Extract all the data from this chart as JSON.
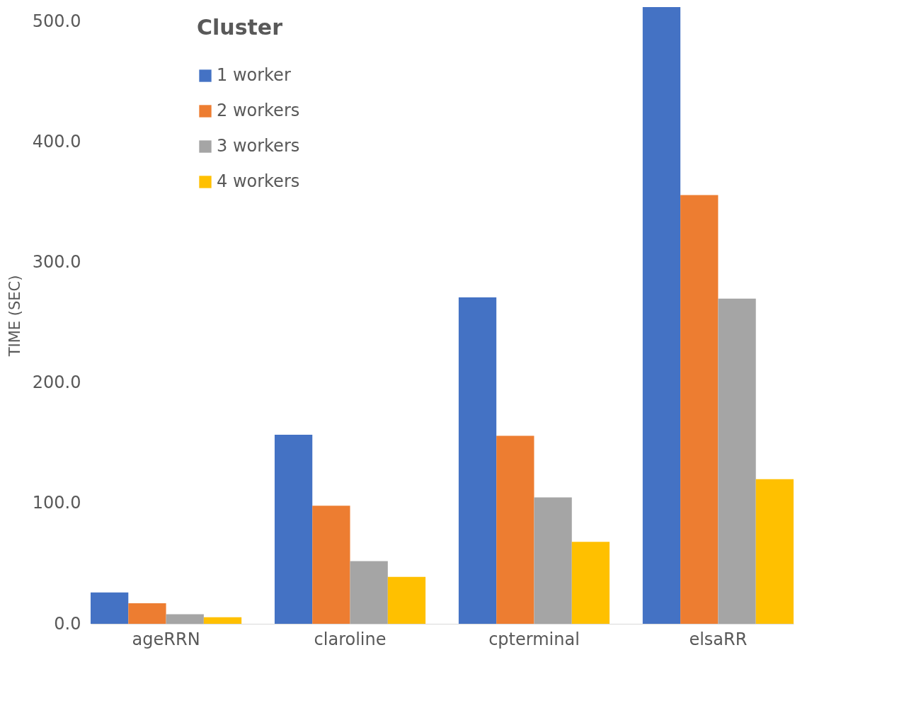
{
  "chart_data": {
    "type": "bar",
    "ylabel": "TIME (SEC)",
    "legend_title": "Cluster",
    "categories": [
      "ageRRN",
      "claroline",
      "cpterminal",
      "elsaRR"
    ],
    "series": [
      {
        "name": "1 worker",
        "color": "#4472c4",
        "values": [
          26,
          157,
          271,
          512
        ]
      },
      {
        "name": "2 workers",
        "color": "#ed7d31",
        "values": [
          17,
          98,
          156,
          356
        ]
      },
      {
        "name": "3 workers",
        "color": "#a5a5a5",
        "values": [
          8,
          52,
          105,
          270
        ]
      },
      {
        "name": "4 workers",
        "color": "#ffc000",
        "values": [
          5.5,
          39,
          68,
          120
        ]
      }
    ],
    "ylim": [
      0,
      512
    ],
    "yticks": [
      {
        "value": 0,
        "label": "0.0"
      },
      {
        "value": 100,
        "label": "100.0"
      },
      {
        "value": 200,
        "label": "200.0"
      },
      {
        "value": 300,
        "label": "300.0"
      },
      {
        "value": 400,
        "label": "400.0"
      },
      {
        "value": 500,
        "label": "500.0"
      }
    ],
    "grid": false,
    "legend": "top left"
  }
}
